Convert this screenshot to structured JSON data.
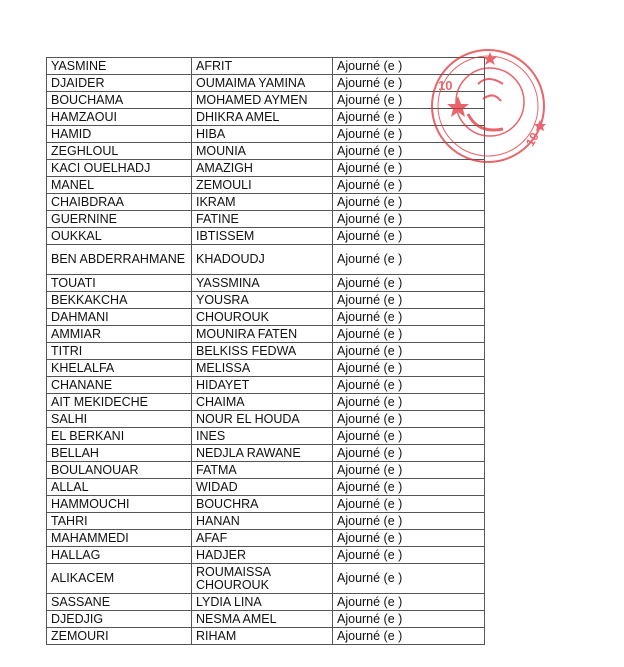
{
  "rows": [
    [
      "YASMINE",
      "AFRIT",
      "Ajourné (e )"
    ],
    [
      "DJAIDER",
      "OUMAIMA YAMINA",
      "Ajourné (e )"
    ],
    [
      "BOUCHAMA",
      "MOHAMED AYMEN",
      "Ajourné (e )"
    ],
    [
      "HAMZAOUI",
      "DHIKRA AMEL",
      "Ajourné (e )"
    ],
    [
      "HAMID",
      "HIBA",
      "Ajourné (e )"
    ],
    [
      "ZEGHLOUL",
      "MOUNIA",
      "Ajourné (e )"
    ],
    [
      "KACI OUELHADJ",
      "AMAZIGH",
      "Ajourné (e )"
    ],
    [
      "MANEL",
      "ZEMOULI",
      "Ajourné (e )"
    ],
    [
      "CHAIBDRAA",
      "IKRAM",
      "Ajourné (e )"
    ],
    [
      "GUERNINE",
      "FATINE",
      "Ajourné (e )"
    ],
    [
      "OUKKAL",
      "IBTISSEM",
      "Ajourné (e )"
    ],
    [
      "BEN ABDERRAHMANE",
      "KHADOUDJ",
      "Ajourné (e )"
    ],
    [
      "TOUATI",
      "YASSMINA",
      "Ajourné (e )"
    ],
    [
      "BEKKAKCHA",
      "YOUSRA",
      "Ajourné (e )"
    ],
    [
      "DAHMANI",
      "CHOUROUK",
      "Ajourné (e )"
    ],
    [
      "AMMIAR",
      "MOUNIRA FATEN",
      "Ajourné (e )"
    ],
    [
      "TITRI",
      "BELKISS FEDWA",
      "Ajourné (e )"
    ],
    [
      "KHELALFA",
      "MELISSA",
      "Ajourné (e )"
    ],
    [
      "CHANANE",
      "HIDAYET",
      "Ajourné (e )"
    ],
    [
      "AIT MEKIDECHE",
      "CHAIMA",
      "Ajourné (e )"
    ],
    [
      "SALHI",
      "NOUR EL HOUDA",
      "Ajourné (e )"
    ],
    [
      "EL BERKANI",
      "INES",
      "Ajourné (e )"
    ],
    [
      "BELLAH",
      "NEDJLA RAWANE",
      "Ajourné (e )"
    ],
    [
      "BOULANOUAR",
      "FATMA",
      "Ajourné (e )"
    ],
    [
      "ALLAL",
      "WIDAD",
      "Ajourné (e )"
    ],
    [
      "HAMMOUCHI",
      "BOUCHRA",
      "Ajourné (e )"
    ],
    [
      "TAHRI",
      "HANAN",
      "Ajourné (e )"
    ],
    [
      "MAHAMMEDI",
      "AFAF",
      "Ajourné (e )"
    ],
    [
      "HALLAG",
      "HADJER",
      "Ajourné (e )"
    ],
    [
      "ALIKACEM",
      "ROUMAISSA CHOUROUK",
      "Ajourné (e )"
    ],
    [
      "SASSANE",
      "LYDIA LINA",
      "Ajourné (e )"
    ],
    [
      "DJEDJIG",
      "NESMA AMEL",
      "Ajourné (e )"
    ],
    [
      "ZEMOURI",
      "RIHAM",
      "Ajourné (e )"
    ]
  ],
  "stamp": {
    "number": "10",
    "color": "#e0323c"
  }
}
